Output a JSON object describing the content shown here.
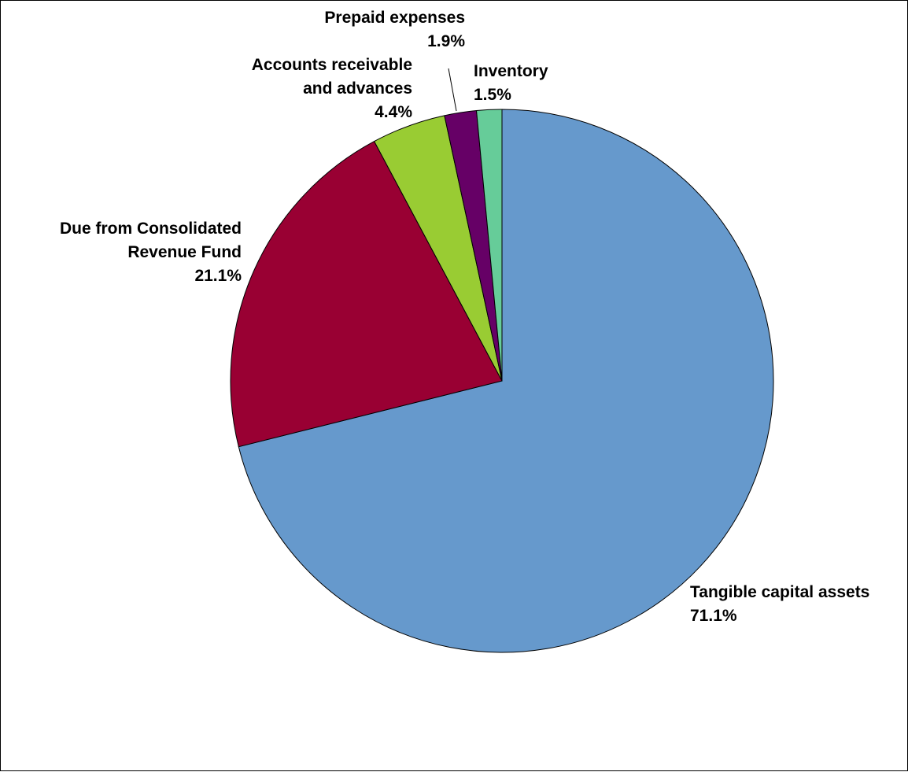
{
  "chart_data": {
    "type": "pie",
    "title": "",
    "slices": [
      {
        "name": "Tangible capital assets",
        "value": 71.1,
        "value_label": "71.1%",
        "color": "#6699CC"
      },
      {
        "name": "Due from Consolidated Revenue Fund",
        "value": 21.1,
        "value_label": "21.1%",
        "color": "#990033"
      },
      {
        "name": "Accounts receivable and advances",
        "value": 4.4,
        "value_label": "4.4%",
        "color": "#99CC33"
      },
      {
        "name": "Prepaid expenses",
        "value": 1.9,
        "value_label": "1.9%",
        "color": "#660066"
      },
      {
        "name": "Inventory",
        "value": 1.5,
        "value_label": "1.5%",
        "color": "#66CC99"
      }
    ],
    "legend": "none",
    "start": "top",
    "direction": "clockwise"
  },
  "labels": {
    "tangible": {
      "lines": [
        "Tangible capital assets"
      ],
      "value": "71.1%"
    },
    "crf": {
      "lines": [
        "Due from Consolidated",
        "Revenue Fund"
      ],
      "value": "21.1%"
    },
    "receivable": {
      "lines": [
        "Accounts receivable",
        "and advances"
      ],
      "value": "4.4%"
    },
    "prepaid": {
      "lines": [
        "Prepaid expenses"
      ],
      "value": "1.9%"
    },
    "inventory": {
      "lines": [
        "Inventory"
      ],
      "value": "1.5%"
    }
  }
}
